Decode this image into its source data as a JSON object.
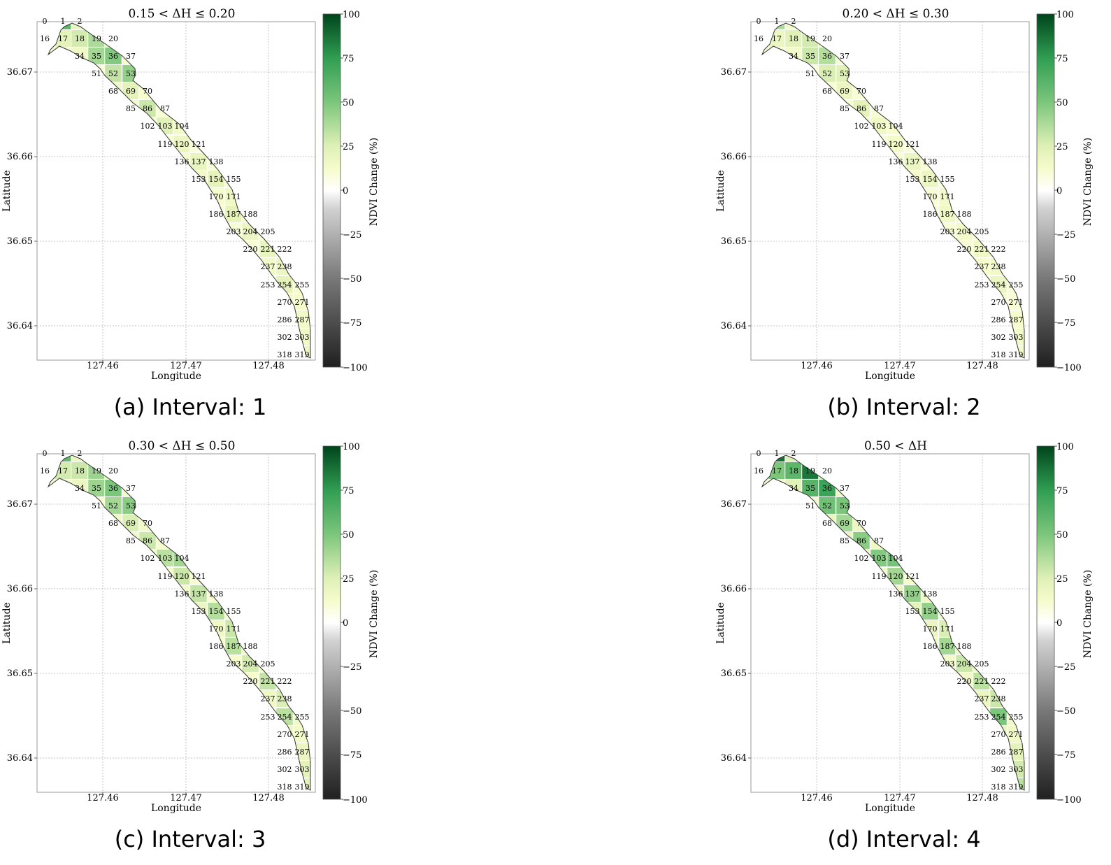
{
  "figure": {
    "xlabel": "Longitude",
    "ylabel": "Latitude",
    "colorbar_label": "NDVI Change (%)",
    "colorbar_ticks": [
      "100",
      "75",
      "50",
      "25",
      "0",
      "−25",
      "−50",
      "−75",
      "−100"
    ],
    "x_ticks": [
      "127.46",
      "127.47",
      "127.48"
    ],
    "y_ticks": [
      "36.67",
      "36.66",
      "36.65",
      "36.64"
    ]
  },
  "chart_data": [
    {
      "type": "heatmap",
      "title": "0.15 < ΔH ≤ 0.20",
      "caption": "(a) Interval: 1",
      "xlabel": "Longitude",
      "ylabel": "Latitude",
      "xlim": [
        127.4515,
        127.4845
      ],
      "ylim": [
        36.6358,
        36.6758
      ],
      "colorbar": {
        "label": "NDVI Change (%)",
        "range": [
          -100,
          100
        ]
      },
      "cells": [
        {
          "id": "0",
          "value": 12
        },
        {
          "id": "1",
          "value": 60
        },
        {
          "id": "2",
          "value": 20
        },
        {
          "id": "16",
          "value": 8
        },
        {
          "id": "17",
          "value": 22
        },
        {
          "id": "18",
          "value": 28
        },
        {
          "id": "19",
          "value": 38
        },
        {
          "id": "20",
          "value": 18
        },
        {
          "id": "34",
          "value": 16
        },
        {
          "id": "35",
          "value": 40
        },
        {
          "id": "36",
          "value": 48
        },
        {
          "id": "37",
          "value": 12
        },
        {
          "id": "51",
          "value": 10
        },
        {
          "id": "52",
          "value": 32
        },
        {
          "id": "53",
          "value": 44
        },
        {
          "id": "68",
          "value": 15
        },
        {
          "id": "69",
          "value": 22
        },
        {
          "id": "70",
          "value": 12
        },
        {
          "id": "85",
          "value": 14
        },
        {
          "id": "86",
          "value": 30
        },
        {
          "id": "87",
          "value": 10
        },
        {
          "id": "102",
          "value": 12
        },
        {
          "id": "103",
          "value": 24
        },
        {
          "id": "104",
          "value": 14
        },
        {
          "id": "119",
          "value": 10
        },
        {
          "id": "120",
          "value": 18
        },
        {
          "id": "121",
          "value": 8
        },
        {
          "id": "136",
          "value": 12
        },
        {
          "id": "137",
          "value": 20
        },
        {
          "id": "138",
          "value": 10
        },
        {
          "id": "153",
          "value": 14
        },
        {
          "id": "154",
          "value": 22
        },
        {
          "id": "155",
          "value": 10
        },
        {
          "id": "170",
          "value": 12
        },
        {
          "id": "171",
          "value": 16
        },
        {
          "id": "186",
          "value": 10
        },
        {
          "id": "187",
          "value": 22
        },
        {
          "id": "188",
          "value": 12
        },
        {
          "id": "203",
          "value": 10
        },
        {
          "id": "204",
          "value": 18
        },
        {
          "id": "205",
          "value": 10
        },
        {
          "id": "220",
          "value": 10
        },
        {
          "id": "221",
          "value": 20
        },
        {
          "id": "222",
          "value": 12
        },
        {
          "id": "237",
          "value": 14
        },
        {
          "id": "238",
          "value": 18
        },
        {
          "id": "253",
          "value": 10
        },
        {
          "id": "254",
          "value": 22
        },
        {
          "id": "255",
          "value": 12
        },
        {
          "id": "270",
          "value": 14
        },
        {
          "id": "271",
          "value": 12
        },
        {
          "id": "286",
          "value": 12
        },
        {
          "id": "287",
          "value": 14
        },
        {
          "id": "302",
          "value": 10
        },
        {
          "id": "303",
          "value": 16
        },
        {
          "id": "318",
          "value": 10
        },
        {
          "id": "319",
          "value": 18
        }
      ]
    },
    {
      "type": "heatmap",
      "title": "0.20 < ΔH ≤ 0.30",
      "caption": "(b) Interval: 2",
      "xlabel": "Longitude",
      "ylabel": "Latitude",
      "xlim": [
        127.4515,
        127.4845
      ],
      "ylim": [
        36.6358,
        36.6758
      ],
      "colorbar": {
        "label": "NDVI Change (%)",
        "range": [
          -100,
          100
        ]
      },
      "cells": [
        {
          "id": "0",
          "value": 10
        },
        {
          "id": "1",
          "value": 38
        },
        {
          "id": "2",
          "value": 14
        },
        {
          "id": "16",
          "value": 8
        },
        {
          "id": "17",
          "value": 18
        },
        {
          "id": "18",
          "value": 24
        },
        {
          "id": "19",
          "value": 28
        },
        {
          "id": "20",
          "value": 14
        },
        {
          "id": "34",
          "value": 14
        },
        {
          "id": "35",
          "value": 30
        },
        {
          "id": "36",
          "value": 36
        },
        {
          "id": "37",
          "value": 10
        },
        {
          "id": "51",
          "value": 10
        },
        {
          "id": "52",
          "value": 26
        },
        {
          "id": "53",
          "value": 24
        },
        {
          "id": "68",
          "value": 12
        },
        {
          "id": "69",
          "value": 18
        },
        {
          "id": "70",
          "value": 10
        },
        {
          "id": "85",
          "value": 12
        },
        {
          "id": "86",
          "value": 22
        },
        {
          "id": "87",
          "value": 10
        },
        {
          "id": "102",
          "value": 10
        },
        {
          "id": "103",
          "value": 16
        },
        {
          "id": "104",
          "value": 12
        },
        {
          "id": "119",
          "value": 10
        },
        {
          "id": "120",
          "value": 14
        },
        {
          "id": "121",
          "value": 8
        },
        {
          "id": "136",
          "value": 10
        },
        {
          "id": "137",
          "value": 18
        },
        {
          "id": "138",
          "value": 10
        },
        {
          "id": "153",
          "value": 12
        },
        {
          "id": "154",
          "value": 18
        },
        {
          "id": "155",
          "value": 10
        },
        {
          "id": "170",
          "value": 10
        },
        {
          "id": "171",
          "value": 14
        },
        {
          "id": "186",
          "value": 10
        },
        {
          "id": "187",
          "value": 16
        },
        {
          "id": "188",
          "value": 10
        },
        {
          "id": "203",
          "value": 10
        },
        {
          "id": "204",
          "value": 14
        },
        {
          "id": "205",
          "value": 8
        },
        {
          "id": "220",
          "value": 10
        },
        {
          "id": "221",
          "value": 16
        },
        {
          "id": "222",
          "value": 10
        },
        {
          "id": "237",
          "value": 12
        },
        {
          "id": "238",
          "value": 14
        },
        {
          "id": "253",
          "value": 10
        },
        {
          "id": "254",
          "value": 18
        },
        {
          "id": "255",
          "value": 10
        },
        {
          "id": "270",
          "value": 12
        },
        {
          "id": "271",
          "value": 10
        },
        {
          "id": "286",
          "value": 10
        },
        {
          "id": "287",
          "value": 12
        },
        {
          "id": "302",
          "value": 10
        },
        {
          "id": "303",
          "value": 14
        },
        {
          "id": "318",
          "value": 10
        },
        {
          "id": "319",
          "value": 14
        }
      ]
    },
    {
      "type": "heatmap",
      "title": "0.30 < ΔH ≤ 0.50",
      "caption": "(c) Interval: 3",
      "xlabel": "Longitude",
      "ylabel": "Latitude",
      "xlim": [
        127.4515,
        127.4845
      ],
      "ylim": [
        36.6358,
        36.6758
      ],
      "colorbar": {
        "label": "NDVI Change (%)",
        "range": [
          -100,
          100
        ]
      },
      "cells": [
        {
          "id": "0",
          "value": 12
        },
        {
          "id": "1",
          "value": 58
        },
        {
          "id": "2",
          "value": 18
        },
        {
          "id": "16",
          "value": 10
        },
        {
          "id": "17",
          "value": 28
        },
        {
          "id": "18",
          "value": 30
        },
        {
          "id": "19",
          "value": 42
        },
        {
          "id": "20",
          "value": 22
        },
        {
          "id": "34",
          "value": 18
        },
        {
          "id": "35",
          "value": 42
        },
        {
          "id": "36",
          "value": 50
        },
        {
          "id": "37",
          "value": 14
        },
        {
          "id": "51",
          "value": 12
        },
        {
          "id": "52",
          "value": 40
        },
        {
          "id": "53",
          "value": 46
        },
        {
          "id": "68",
          "value": 16
        },
        {
          "id": "69",
          "value": 26
        },
        {
          "id": "70",
          "value": 14
        },
        {
          "id": "85",
          "value": 14
        },
        {
          "id": "86",
          "value": 30
        },
        {
          "id": "87",
          "value": 12
        },
        {
          "id": "102",
          "value": 14
        },
        {
          "id": "103",
          "value": 34
        },
        {
          "id": "104",
          "value": 40
        },
        {
          "id": "119",
          "value": 12
        },
        {
          "id": "120",
          "value": 30
        },
        {
          "id": "121",
          "value": 10
        },
        {
          "id": "136",
          "value": 14
        },
        {
          "id": "137",
          "value": 32
        },
        {
          "id": "138",
          "value": 12
        },
        {
          "id": "153",
          "value": 18
        },
        {
          "id": "154",
          "value": 36
        },
        {
          "id": "155",
          "value": 12
        },
        {
          "id": "170",
          "value": 16
        },
        {
          "id": "171",
          "value": 30
        },
        {
          "id": "186",
          "value": 12
        },
        {
          "id": "187",
          "value": 34
        },
        {
          "id": "188",
          "value": 14
        },
        {
          "id": "203",
          "value": 12
        },
        {
          "id": "204",
          "value": 28
        },
        {
          "id": "205",
          "value": 12
        },
        {
          "id": "220",
          "value": 12
        },
        {
          "id": "221",
          "value": 32
        },
        {
          "id": "222",
          "value": 14
        },
        {
          "id": "237",
          "value": 16
        },
        {
          "id": "238",
          "value": 26
        },
        {
          "id": "253",
          "value": 12
        },
        {
          "id": "254",
          "value": 34
        },
        {
          "id": "255",
          "value": 14
        },
        {
          "id": "270",
          "value": 18
        },
        {
          "id": "271",
          "value": 14
        },
        {
          "id": "286",
          "value": 14
        },
        {
          "id": "287",
          "value": 18
        },
        {
          "id": "302",
          "value": 12
        },
        {
          "id": "303",
          "value": 22
        },
        {
          "id": "318",
          "value": 12
        },
        {
          "id": "319",
          "value": 22
        }
      ]
    },
    {
      "type": "heatmap",
      "title": "0.50 < ΔH",
      "caption": "(d) Interval: 4",
      "xlabel": "Longitude",
      "ylabel": "Latitude",
      "xlim": [
        127.4515,
        127.4845
      ],
      "ylim": [
        36.6358,
        36.6758
      ],
      "colorbar": {
        "label": "NDVI Change (%)",
        "range": [
          -100,
          100
        ]
      },
      "cells": [
        {
          "id": "0",
          "value": 14
        },
        {
          "id": "1",
          "value": 88
        },
        {
          "id": "2",
          "value": 24
        },
        {
          "id": "16",
          "value": 12
        },
        {
          "id": "17",
          "value": 50
        },
        {
          "id": "18",
          "value": 60
        },
        {
          "id": "19",
          "value": 86
        },
        {
          "id": "20",
          "value": 26
        },
        {
          "id": "34",
          "value": 24
        },
        {
          "id": "35",
          "value": 62
        },
        {
          "id": "36",
          "value": 72
        },
        {
          "id": "37",
          "value": 16
        },
        {
          "id": "51",
          "value": 14
        },
        {
          "id": "52",
          "value": 54
        },
        {
          "id": "53",
          "value": 50
        },
        {
          "id": "68",
          "value": 20
        },
        {
          "id": "69",
          "value": 40
        },
        {
          "id": "70",
          "value": 18
        },
        {
          "id": "85",
          "value": 18
        },
        {
          "id": "86",
          "value": 46
        },
        {
          "id": "87",
          "value": 16
        },
        {
          "id": "102",
          "value": 16
        },
        {
          "id": "103",
          "value": 48
        },
        {
          "id": "104",
          "value": 52
        },
        {
          "id": "119",
          "value": 14
        },
        {
          "id": "120",
          "value": 40
        },
        {
          "id": "121",
          "value": 12
        },
        {
          "id": "136",
          "value": 18
        },
        {
          "id": "137",
          "value": 44
        },
        {
          "id": "138",
          "value": 16
        },
        {
          "id": "153",
          "value": 22
        },
        {
          "id": "154",
          "value": 44
        },
        {
          "id": "155",
          "value": 14
        },
        {
          "id": "170",
          "value": 18
        },
        {
          "id": "171",
          "value": 26
        },
        {
          "id": "186",
          "value": 14
        },
        {
          "id": "187",
          "value": 40
        },
        {
          "id": "188",
          "value": 16
        },
        {
          "id": "203",
          "value": 14
        },
        {
          "id": "204",
          "value": 30
        },
        {
          "id": "205",
          "value": 14
        },
        {
          "id": "220",
          "value": 14
        },
        {
          "id": "221",
          "value": 34
        },
        {
          "id": "222",
          "value": 16
        },
        {
          "id": "237",
          "value": 18
        },
        {
          "id": "238",
          "value": 30
        },
        {
          "id": "253",
          "value": 14
        },
        {
          "id": "254",
          "value": 50
        },
        {
          "id": "255",
          "value": 16
        },
        {
          "id": "270",
          "value": 20
        },
        {
          "id": "271",
          "value": 16
        },
        {
          "id": "286",
          "value": 16
        },
        {
          "id": "287",
          "value": 22
        },
        {
          "id": "302",
          "value": 14
        },
        {
          "id": "303",
          "value": 28
        },
        {
          "id": "318",
          "value": 14
        },
        {
          "id": "319",
          "value": 34
        }
      ]
    }
  ]
}
